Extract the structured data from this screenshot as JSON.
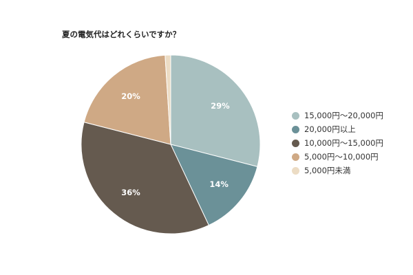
{
  "chart_data": {
    "type": "pie",
    "title": "夏の電気代はどれくらいですか？",
    "start_angle_deg": 0,
    "direction": "clockwise",
    "legend_position": "right",
    "slices": [
      {
        "label": "15,000円〜20,000円",
        "value": 29,
        "display": "29%",
        "color": "#a8c0c0",
        "label_color": "#ffffff"
      },
      {
        "label": "20,000円以上",
        "value": 14,
        "display": "14%",
        "color": "#6b9198",
        "label_color": "#ffffff"
      },
      {
        "label": "10,000円〜15,000円",
        "value": 36,
        "display": "36%",
        "color": "#655a4f",
        "label_color": "#ffffff"
      },
      {
        "label": "5,000円〜10,000円",
        "value": 20,
        "display": "20%",
        "color": "#cfa985",
        "label_color": "#ffffff"
      },
      {
        "label": "5,000円未満",
        "value": 1,
        "display": "",
        "color": "#ecdcc4",
        "label_color": "#ffffff"
      }
    ]
  }
}
